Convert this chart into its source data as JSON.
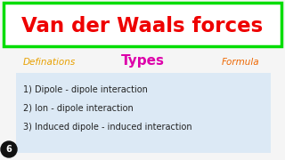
{
  "title": "Van der Waals forces",
  "title_color": "#ee0000",
  "title_border_color": "#00dd00",
  "title_bg": "#ffffff",
  "bg_color": "#f5f5f5",
  "definations_text": "Definations",
  "definations_color": "#e8a000",
  "types_text": "Types",
  "types_color": "#dd00aa",
  "formula_text": "Formula",
  "formula_color": "#ee6600",
  "items": [
    "1) Dipole - dipole interaction",
    "2) Ion - dipole interaction",
    "3) Induced dipole - induced interaction"
  ],
  "items_color": "#222222",
  "items_bg": "#dce9f5",
  "bottom_number": "6",
  "bottom_number_color": "#ffffff",
  "bottom_number_bg": "#111111"
}
